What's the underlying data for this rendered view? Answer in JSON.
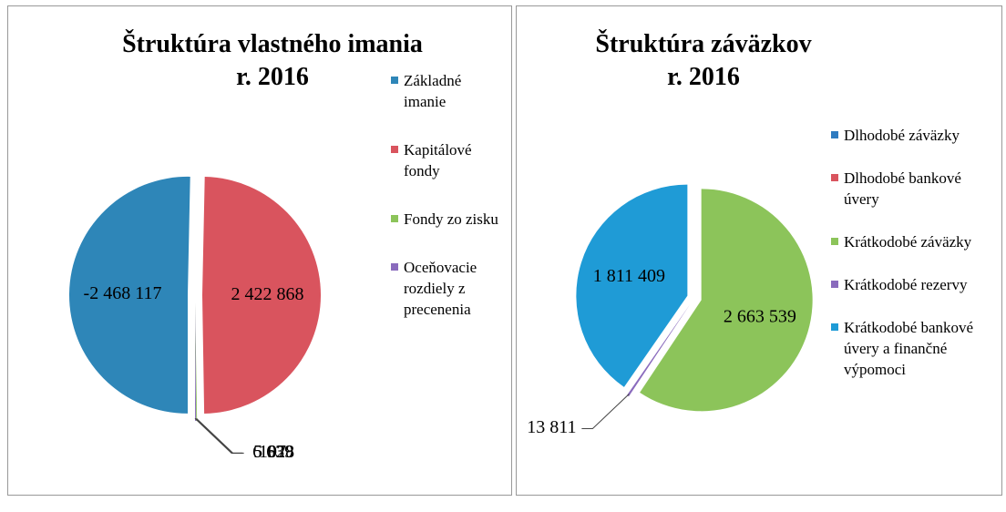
{
  "chart_data": [
    {
      "type": "pie",
      "title": [
        "Štruktúra vlastného imania",
        "r. 2016"
      ],
      "categories": [
        "Základné imanie",
        "Kapitálové fondy",
        "Fondy zo zisku",
        "Oceňovacie rozdiely z precenenia",
        null
      ],
      "values": [
        -2468117,
        2422868,
        5928,
        6639,
        107
      ],
      "value_labels": [
        "-2 468 117",
        "2 422 868",
        "5 928",
        "6 639",
        "107"
      ],
      "colors": [
        "#2e86b8",
        "#d9545e",
        "#8cc45a",
        "#8a6bbd",
        "#3aa7c9"
      ]
    },
    {
      "type": "pie",
      "title": [
        "Štruktúra záväzkov",
        "r. 2016"
      ],
      "categories": [
        "Dlhodobé záväzky",
        "Dlhodobé bankové úvery",
        "Krátkodobé záväzky",
        "Krátkodobé rezervy",
        "Krátkodobé bankové úvery a finančné výpomoci"
      ],
      "values": [
        0,
        0,
        2663539,
        13811,
        1811409
      ],
      "value_labels": [
        null,
        null,
        "2 663 539",
        "13 811",
        "1 811 409"
      ],
      "colors": [
        "#2e7bc0",
        "#d9545e",
        "#8cc45a",
        "#8a6bbd",
        "#1f9bd6"
      ]
    }
  ]
}
